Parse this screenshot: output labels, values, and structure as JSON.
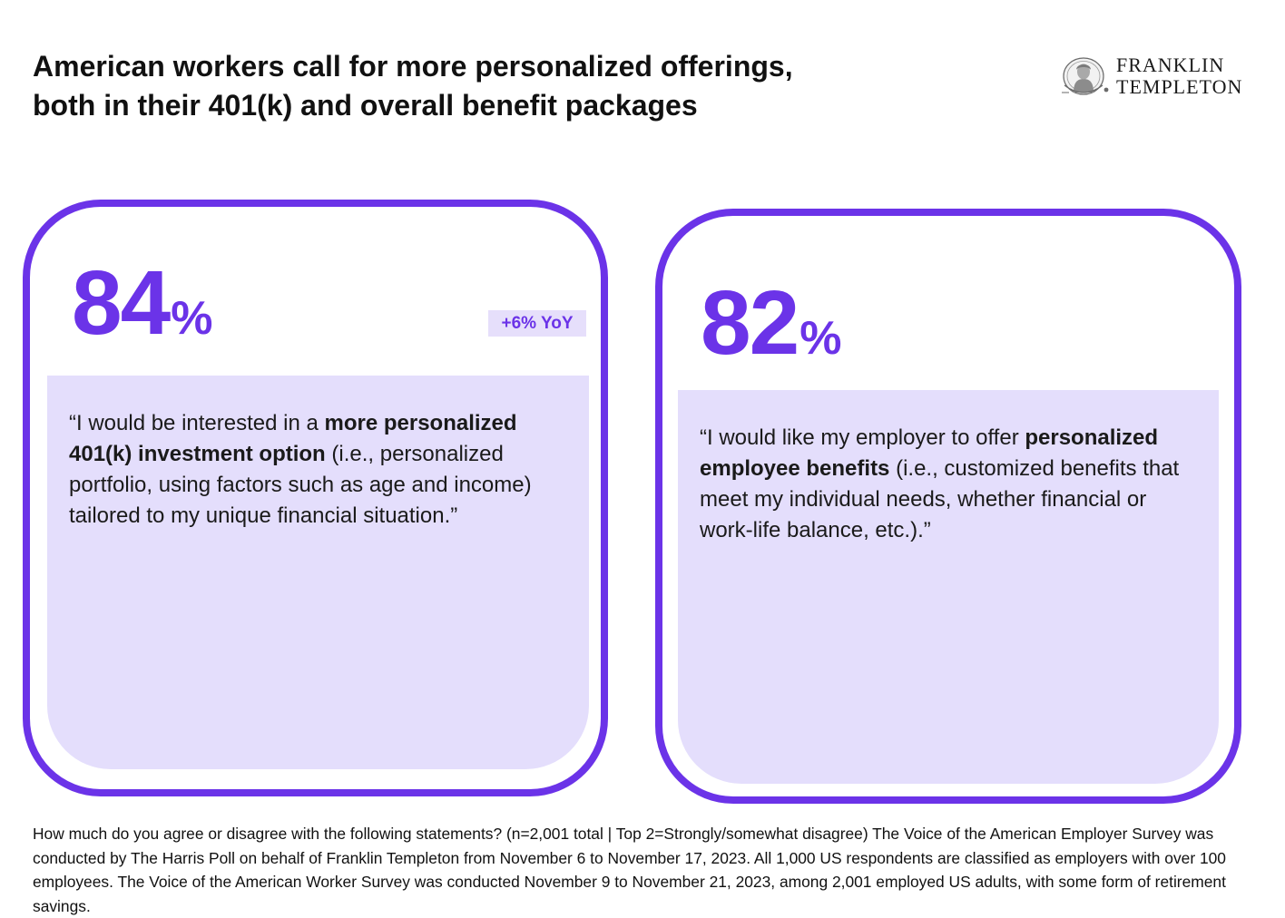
{
  "title": {
    "line1": "American workers call for more personalized offerings,",
    "line2": "both in their 401(k) and overall benefit packages"
  },
  "logo": {
    "line1": "FRANKLIN",
    "line2": "TEMPLETON",
    "icon": "franklin-seal-icon"
  },
  "colors": {
    "accent": "#6b33e8",
    "panel": "#e4defc",
    "badge_bg": "#e6dffb"
  },
  "cards": [
    {
      "stat_value": "84",
      "stat_unit": "%",
      "badge": "+6% YoY",
      "quote": {
        "pre": "“I would be interested in a ",
        "bold": "more personalized 401(k) investment option",
        "post": " (i.e., personalized portfolio, using factors such as age and income) tailored to my unique financial situation.”"
      }
    },
    {
      "stat_value": "82",
      "stat_unit": "%",
      "quote": {
        "pre": "“I would like my employer to offer ",
        "bold": "personalized employee benefits",
        "post": " (i.e., customized benefits that meet my individual needs, whether financial or work-life balance, etc.).”"
      }
    }
  ],
  "footnote": "How much do you agree or disagree with the following statements? (n=2,001 total | Top 2=Strongly/somewhat disagree) The Voice of the American Employer Survey was conducted by The Harris Poll on behalf of Franklin Templeton from November 6 to November 17, 2023. All 1,000 US respondents are classified as employers with over 100 employees. The Voice of the American Worker Survey was conducted November 9 to November 21, 2023, among 2,001 employed US adults, with some form of retirement savings."
}
